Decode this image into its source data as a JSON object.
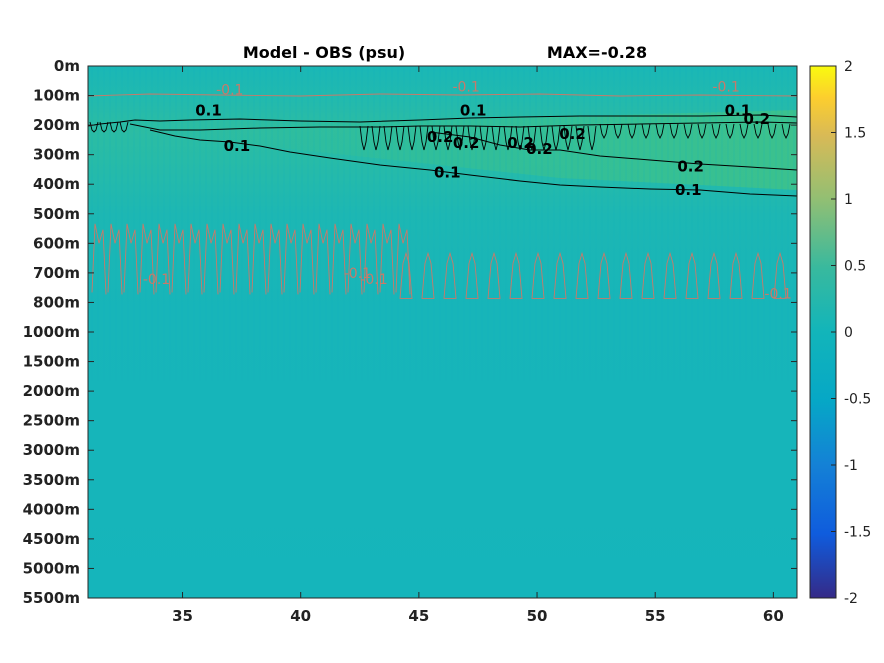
{
  "chart_data": {
    "type": "heatmap",
    "title": "Model - OBS (psu)",
    "subtitle": "MAX=-0.28",
    "x_ticks": [
      35,
      40,
      45,
      50,
      55,
      60
    ],
    "xlim": [
      31,
      61
    ],
    "y_tick_labels": [
      "0m",
      "100m",
      "200m",
      "300m",
      "400m",
      "500m",
      "600m",
      "700m",
      "800m",
      "1000m",
      "1500m",
      "2000m",
      "2500m",
      "3000m",
      "3500m",
      "4000m",
      "4500m",
      "5000m",
      "5500m"
    ],
    "y_reversed": true,
    "colormap": "parula",
    "clim": [
      -2,
      2
    ],
    "colorbar_ticks": [
      "2",
      "1.5",
      "1",
      "0.5",
      "0",
      "-0.5",
      "-1",
      "-1.5",
      "-2"
    ],
    "colors": {
      "background_field": "#15b5bb",
      "upper_field": "#1fb8b0",
      "positive_band": "#38c08f",
      "contour_positive": "#000000",
      "contour_negative": "#c87a6a"
    },
    "contour_levels": [
      -0.1,
      0.1,
      0.2
    ],
    "contour_labels": [
      {
        "text": "0.1",
        "x": 36.1,
        "depth": "150m",
        "sign": "positive"
      },
      {
        "text": "0.1",
        "x": 37.3,
        "depth": "270m",
        "sign": "positive"
      },
      {
        "text": "0.1",
        "x": 47.3,
        "depth": "150m",
        "sign": "positive"
      },
      {
        "text": "0.2",
        "x": 45.9,
        "depth": "240m",
        "sign": "positive"
      },
      {
        "text": "0.2",
        "x": 47.0,
        "depth": "260m",
        "sign": "positive"
      },
      {
        "text": "0.2",
        "x": 49.3,
        "depth": "260m",
        "sign": "positive"
      },
      {
        "text": "0.2",
        "x": 50.1,
        "depth": "280m",
        "sign": "positive"
      },
      {
        "text": "0.2",
        "x": 51.5,
        "depth": "230m",
        "sign": "positive"
      },
      {
        "text": "0.1",
        "x": 46.2,
        "depth": "360m",
        "sign": "positive"
      },
      {
        "text": "0.2",
        "x": 56.5,
        "depth": "340m",
        "sign": "positive"
      },
      {
        "text": "0.1",
        "x": 56.4,
        "depth": "420m",
        "sign": "positive"
      },
      {
        "text": "0.1",
        "x": 58.5,
        "depth": "150m",
        "sign": "positive"
      },
      {
        "text": "0.2",
        "x": 59.3,
        "depth": "180m",
        "sign": "positive"
      },
      {
        "text": "-0.1",
        "x": 37.0,
        "depth": "80m",
        "sign": "negative"
      },
      {
        "text": "-0.1",
        "x": 47.0,
        "depth": "70m",
        "sign": "negative"
      },
      {
        "text": "-0.1",
        "x": 58.0,
        "depth": "70m",
        "sign": "negative"
      },
      {
        "text": "-0.1",
        "x": 33.9,
        "depth": "720m",
        "sign": "negative"
      },
      {
        "text": "-0.1",
        "x": 42.4,
        "depth": "700m",
        "sign": "negative"
      },
      {
        "text": "-0.1",
        "x": 43.1,
        "depth": "720m",
        "sign": "negative"
      },
      {
        "text": "-0.1",
        "x": 60.2,
        "depth": "770m",
        "sign": "negative"
      }
    ]
  }
}
